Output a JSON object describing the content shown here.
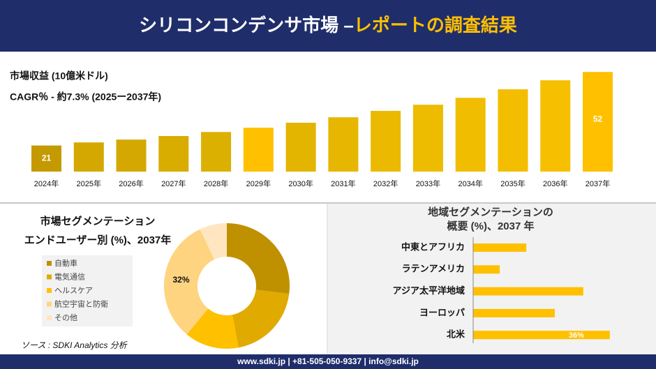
{
  "header": {
    "title": "シリコンコンデンサ市場 –",
    "title_highlight": "レポートの調査結果"
  },
  "source": "ソース : SDKI Analytics 分析",
  "footer": "www.sdki.jp | +81-505-050-9337 | info@sdki.jp",
  "chart_data": [
    {
      "type": "bar",
      "annotations": [
        "市場収益 (10億米ドル)",
        "CAGR％ - 約7.3% (2025ー2037年)"
      ],
      "categories": [
        "2024年",
        "2025年",
        "2026年",
        "2027年",
        "2028年",
        "2029年",
        "2030年",
        "2031年",
        "2032年",
        "2033年",
        "2034年",
        "2035年",
        "2036年",
        "2037年"
      ],
      "values": [
        21,
        22.3,
        23.5,
        25,
        26.7,
        28.5,
        30.6,
        32.9,
        35.6,
        38.2,
        41.1,
        44.7,
        48.5,
        52
      ],
      "value_labels": [
        "21",
        null,
        null,
        null,
        null,
        null,
        null,
        null,
        null,
        null,
        null,
        null,
        null,
        "52"
      ],
      "colors": [
        "#c49a00",
        "#d4a800",
        "#d4a800",
        "#d9ac00",
        "#dcb000",
        "#ffc000",
        "#e3b400",
        "#e6b600",
        "#eab900",
        "#edbb00",
        "#f0bd00",
        "#f3be00",
        "#f6bf00",
        "#ffc000"
      ],
      "ylim": [
        10,
        55
      ]
    },
    {
      "type": "pie",
      "title": [
        "市場セグメンテーション",
        "エンドユーザー別 (%)、2037年"
      ],
      "categories": [
        "自動車",
        "電気通信",
        "ヘルスケア",
        "航空宇宙と防衛",
        "その他"
      ],
      "values": [
        27,
        20,
        14,
        32,
        7
      ],
      "value_labels": [
        null,
        null,
        null,
        "32%",
        null
      ],
      "colors": [
        "#bf9000",
        "#e0aa00",
        "#ffc000",
        "#ffd480",
        "#ffe6c0"
      ],
      "donut": true
    },
    {
      "type": "barh",
      "title": [
        "地域セグメンテーションの",
        "概要 (%)、2037 年"
      ],
      "categories": [
        "中東とアフリカ",
        "ラテンアメリカ",
        "アジア太平洋地域",
        "ヨーロッパ",
        "北米"
      ],
      "values": [
        14,
        7,
        29,
        21.5,
        36
      ],
      "value_labels": [
        null,
        null,
        null,
        null,
        "36%"
      ],
      "color": "#ffc000",
      "xlim": [
        0,
        40
      ]
    }
  ]
}
